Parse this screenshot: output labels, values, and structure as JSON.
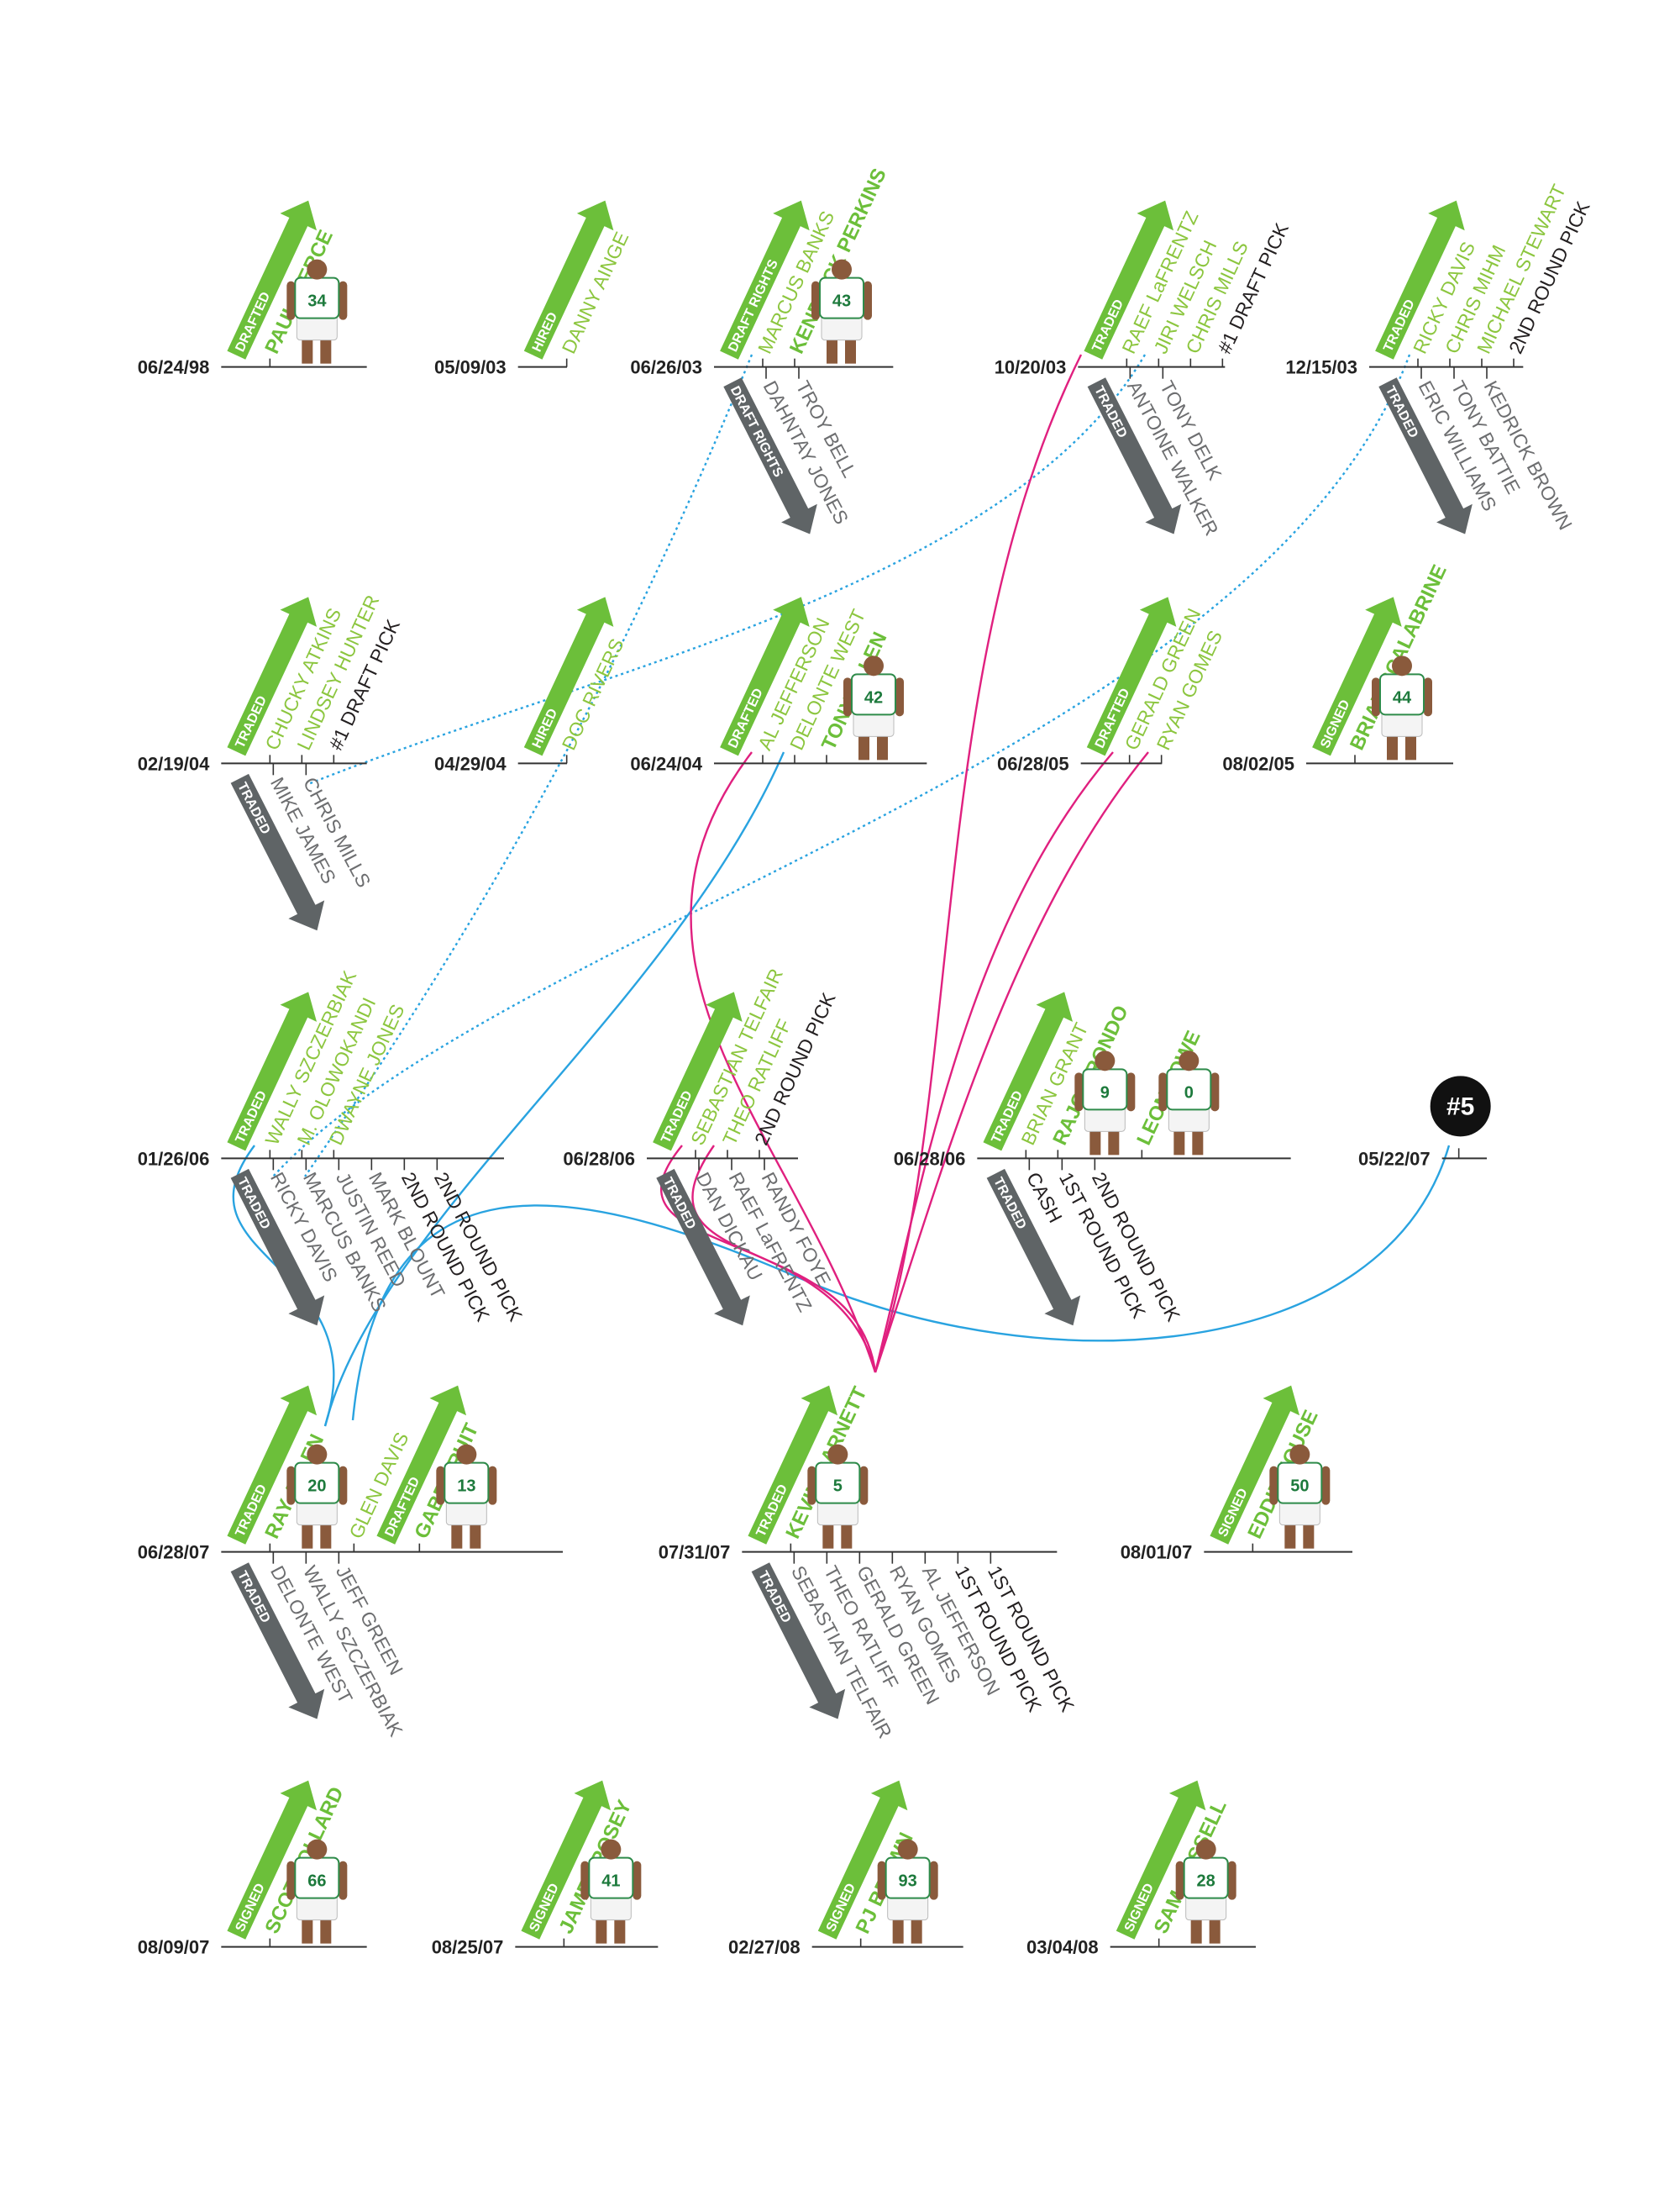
{
  "events": [
    {
      "date": "06/24/98",
      "action": "DRAFTED",
      "gets": [
        {
          "name": "PAUL PIERCE",
          "jersey": 34
        }
      ]
    },
    {
      "date": "05/09/03",
      "action": "HIRED",
      "gets": [
        {
          "name": "DANNY AINGE"
        }
      ]
    },
    {
      "date": "06/26/03",
      "action": "DRAFT RIGHTS",
      "gets": [
        {
          "name": "MARCUS BANKS"
        },
        {
          "name": "KENDRICK PERKINS",
          "jersey": 43
        }
      ],
      "action_out": "DRAFT RIGHTS",
      "gives": [
        {
          "name": "DAHNTAY JONES"
        },
        {
          "name": "TROY BELL"
        }
      ]
    },
    {
      "date": "10/20/03",
      "action": "TRADED",
      "gets": [
        {
          "name": "RAEF LaFRENTZ"
        },
        {
          "name": "JIRI WELSCH"
        },
        {
          "name": "CHRIS MILLS"
        },
        {
          "name": "#1 DRAFT PICK",
          "style": "pick"
        }
      ],
      "action_out": "TRADED",
      "gives": [
        {
          "name": "ANTOINE WALKER"
        },
        {
          "name": "TONY DELK"
        }
      ]
    },
    {
      "date": "12/15/03",
      "action": "TRADED",
      "gets": [
        {
          "name": "RICKY DAVIS"
        },
        {
          "name": "CHRIS MIHM"
        },
        {
          "name": "MICHAEL STEWART"
        },
        {
          "name": "2ND ROUND PICK",
          "style": "pick"
        }
      ],
      "action_out": "TRADED",
      "gives": [
        {
          "name": "ERIC WILLIAMS"
        },
        {
          "name": "TONY BATTIE"
        },
        {
          "name": "KEDRICK BROWN"
        }
      ]
    },
    {
      "date": "02/19/04",
      "action": "TRADED",
      "gets": [
        {
          "name": "CHUCKY ATKINS"
        },
        {
          "name": "LINDSEY HUNTER"
        },
        {
          "name": "#1 DRAFT PICK",
          "style": "pick"
        }
      ],
      "action_out": "TRADED",
      "gives": [
        {
          "name": "MIKE JAMES"
        },
        {
          "name": "CHRIS MILLS"
        }
      ]
    },
    {
      "date": "04/29/04",
      "action": "HIRED",
      "gets": [
        {
          "name": "DOC RIVERS"
        }
      ]
    },
    {
      "date": "06/24/04",
      "action": "DRAFTED",
      "gets": [
        {
          "name": "AL JEFFERSON"
        },
        {
          "name": "DELONTE WEST"
        },
        {
          "name": "TONY ALLEN",
          "jersey": 42
        }
      ]
    },
    {
      "date": "06/28/05",
      "action": "DRAFTED",
      "gets": [
        {
          "name": "GERALD GREEN"
        },
        {
          "name": "RYAN GOMES"
        }
      ]
    },
    {
      "date": "08/02/05",
      "action": "SIGNED",
      "gets": [
        {
          "name": "BRIAN SCALABRINE",
          "jersey": 44
        }
      ]
    },
    {
      "date": "01/26/06",
      "action": "TRADED",
      "gets": [
        {
          "name": "WALLY SZCZERBIAK"
        },
        {
          "name": "M. OLOWOKANDI"
        },
        {
          "name": "DWAYNE JONES"
        }
      ],
      "action_out": "TRADED",
      "gives": [
        {
          "name": "RICKY DAVIS"
        },
        {
          "name": "MARCUS BANKS"
        },
        {
          "name": "JUSTIN REED"
        },
        {
          "name": "MARK BLOUNT"
        },
        {
          "name": "2ND ROUND PICK",
          "style": "pick"
        },
        {
          "name": "2ND ROUND PICK",
          "style": "pick"
        }
      ]
    },
    {
      "date": "06/28/06",
      "action": "TRADED",
      "gets": [
        {
          "name": "SEBASTIAN TELFAIR"
        },
        {
          "name": "THEO RATLIFF"
        },
        {
          "name": "2ND ROUND PICK",
          "style": "pick"
        }
      ],
      "action_out": "TRADED",
      "gives": [
        {
          "name": "DAN DICKAU"
        },
        {
          "name": "RAEF LaFRENTZ"
        },
        {
          "name": "RANDY FOYE"
        }
      ]
    },
    {
      "date": "06/28/06",
      "action": "TRADED",
      "gets": [
        {
          "name": "BRIAN GRANT"
        },
        {
          "name": "RAJON RONDO",
          "jersey": 9
        },
        {
          "name": "LEON POWE",
          "jersey": 0
        }
      ],
      "action_out": "TRADED",
      "gives": [
        {
          "name": "CASH",
          "style": "pick"
        },
        {
          "name": "1ST ROUND PICK",
          "style": "pick"
        },
        {
          "name": "2ND ROUND PICK",
          "style": "pick"
        }
      ]
    },
    {
      "date": "05/22/07",
      "badge": "#5"
    },
    {
      "date": "06/28/07",
      "action": "TRADED",
      "gets": [
        {
          "name": "RAY ALLEN",
          "jersey": 20
        },
        {
          "name": "GLEN DAVIS"
        },
        {
          "name": "GABE PRUIT",
          "jersey": 13,
          "action": "DRAFTED"
        }
      ],
      "action_out": "TRADED",
      "gives": [
        {
          "name": "DELONTE WEST"
        },
        {
          "name": "WALLY SZCZERBIAK"
        },
        {
          "name": "JEFF GREEN"
        }
      ]
    },
    {
      "date": "07/31/07",
      "action": "TRADED",
      "gets": [
        {
          "name": "KEVIN GARNETT",
          "jersey": 5
        }
      ],
      "action_out": "TRADED",
      "gives": [
        {
          "name": "SEBASTIAN TELFAIR"
        },
        {
          "name": "THEO RATLIFF"
        },
        {
          "name": "GERALD GREEN"
        },
        {
          "name": "RYAN GOMES"
        },
        {
          "name": "AL JEFFERSON"
        },
        {
          "name": "1ST ROUND PICK",
          "style": "pick"
        },
        {
          "name": "1ST ROUND PICK",
          "style": "pick"
        }
      ]
    },
    {
      "date": "08/01/07",
      "action": "SIGNED",
      "gets": [
        {
          "name": "EDDIE HOUSE",
          "jersey": 50
        }
      ]
    },
    {
      "date": "08/09/07",
      "action": "SIGNED",
      "gets": [
        {
          "name": "SCOT POLLARD",
          "jersey": 66
        }
      ]
    },
    {
      "date": "08/25/07",
      "action": "SIGNED",
      "gets": [
        {
          "name": "JAMES POSEY",
          "jersey": 41
        }
      ]
    },
    {
      "date": "02/27/08",
      "action": "SIGNED",
      "gets": [
        {
          "name": "PJ BROWN",
          "jersey": 93
        }
      ]
    },
    {
      "date": "03/04/08",
      "action": "SIGNED",
      "gets": [
        {
          "name": "SAM CASSELL",
          "jersey": 28
        }
      ]
    }
  ]
}
